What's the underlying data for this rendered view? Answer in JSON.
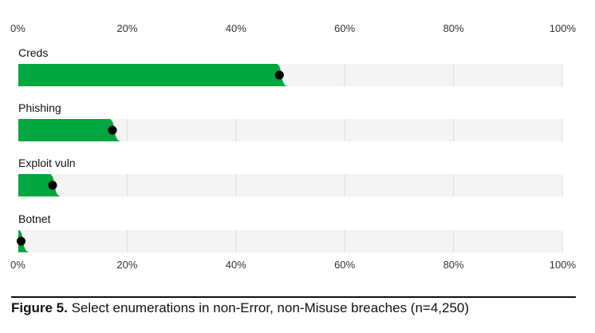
{
  "chart_data": {
    "type": "bar",
    "orientation": "horizontal",
    "categories": [
      "Creds",
      "Phishing",
      "Exploit vuln",
      "Botnet"
    ],
    "values": [
      48,
      17.3,
      6.3,
      0.5
    ],
    "xlim": [
      0,
      100
    ],
    "xticks": [
      "0%",
      "20%",
      "40%",
      "60%",
      "80%",
      "100%"
    ],
    "tick_values": [
      0,
      20,
      40,
      60,
      80,
      100
    ],
    "grid": true,
    "bar_color": "#00a63f",
    "track_color": "#f4f4f4",
    "dot_color": "#000000"
  },
  "caption": {
    "label": "Figure 5.",
    "text": " Select enumerations in non-Error, non-Misuse breaches (n=4,250)"
  }
}
